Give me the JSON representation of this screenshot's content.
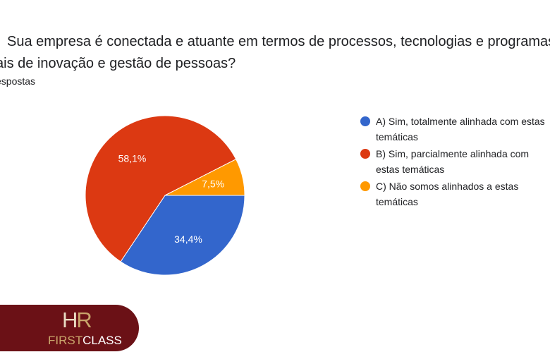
{
  "question": {
    "line1": "Sua empresa é conectada e atuante em termos de processos, tecnologias e programas",
    "line2": "ais de inovação e gestão de pessoas?",
    "responses_label": "espostas"
  },
  "chart_data": {
    "type": "pie",
    "title": "",
    "slices": [
      {
        "label": "A) Sim, totalmente alinhada com estas temáticas",
        "value": 34.4,
        "display": "34,4%",
        "color": "#3366cc"
      },
      {
        "label": "B) Sim, parcialmente alinhada com estas temáticas",
        "value": 58.1,
        "display": "58,1%",
        "color": "#dc3912"
      },
      {
        "label": "C) Não somos alinhados a estas temáticas",
        "value": 7.5,
        "display": "7,5%",
        "color": "#ff9900"
      }
    ],
    "legend_position": "right"
  },
  "legend": [
    {
      "line1": "A) Sim, totalmente alinhada com estas",
      "line2": "temáticas",
      "color": "#3366cc"
    },
    {
      "line1": "B) Sim, parcialmente alinhada com",
      "line2": "estas temáticas",
      "color": "#dc3912"
    },
    {
      "line1": "C) Não somos alinhados a estas",
      "line2": "temáticas",
      "color": "#ff9900"
    }
  ],
  "logo": {
    "hr_h": "H",
    "hr_r": "R",
    "first": "FIRST",
    "class": "CLASS",
    "bg_color": "#6b1116",
    "gold_color": "#c9a56b"
  }
}
